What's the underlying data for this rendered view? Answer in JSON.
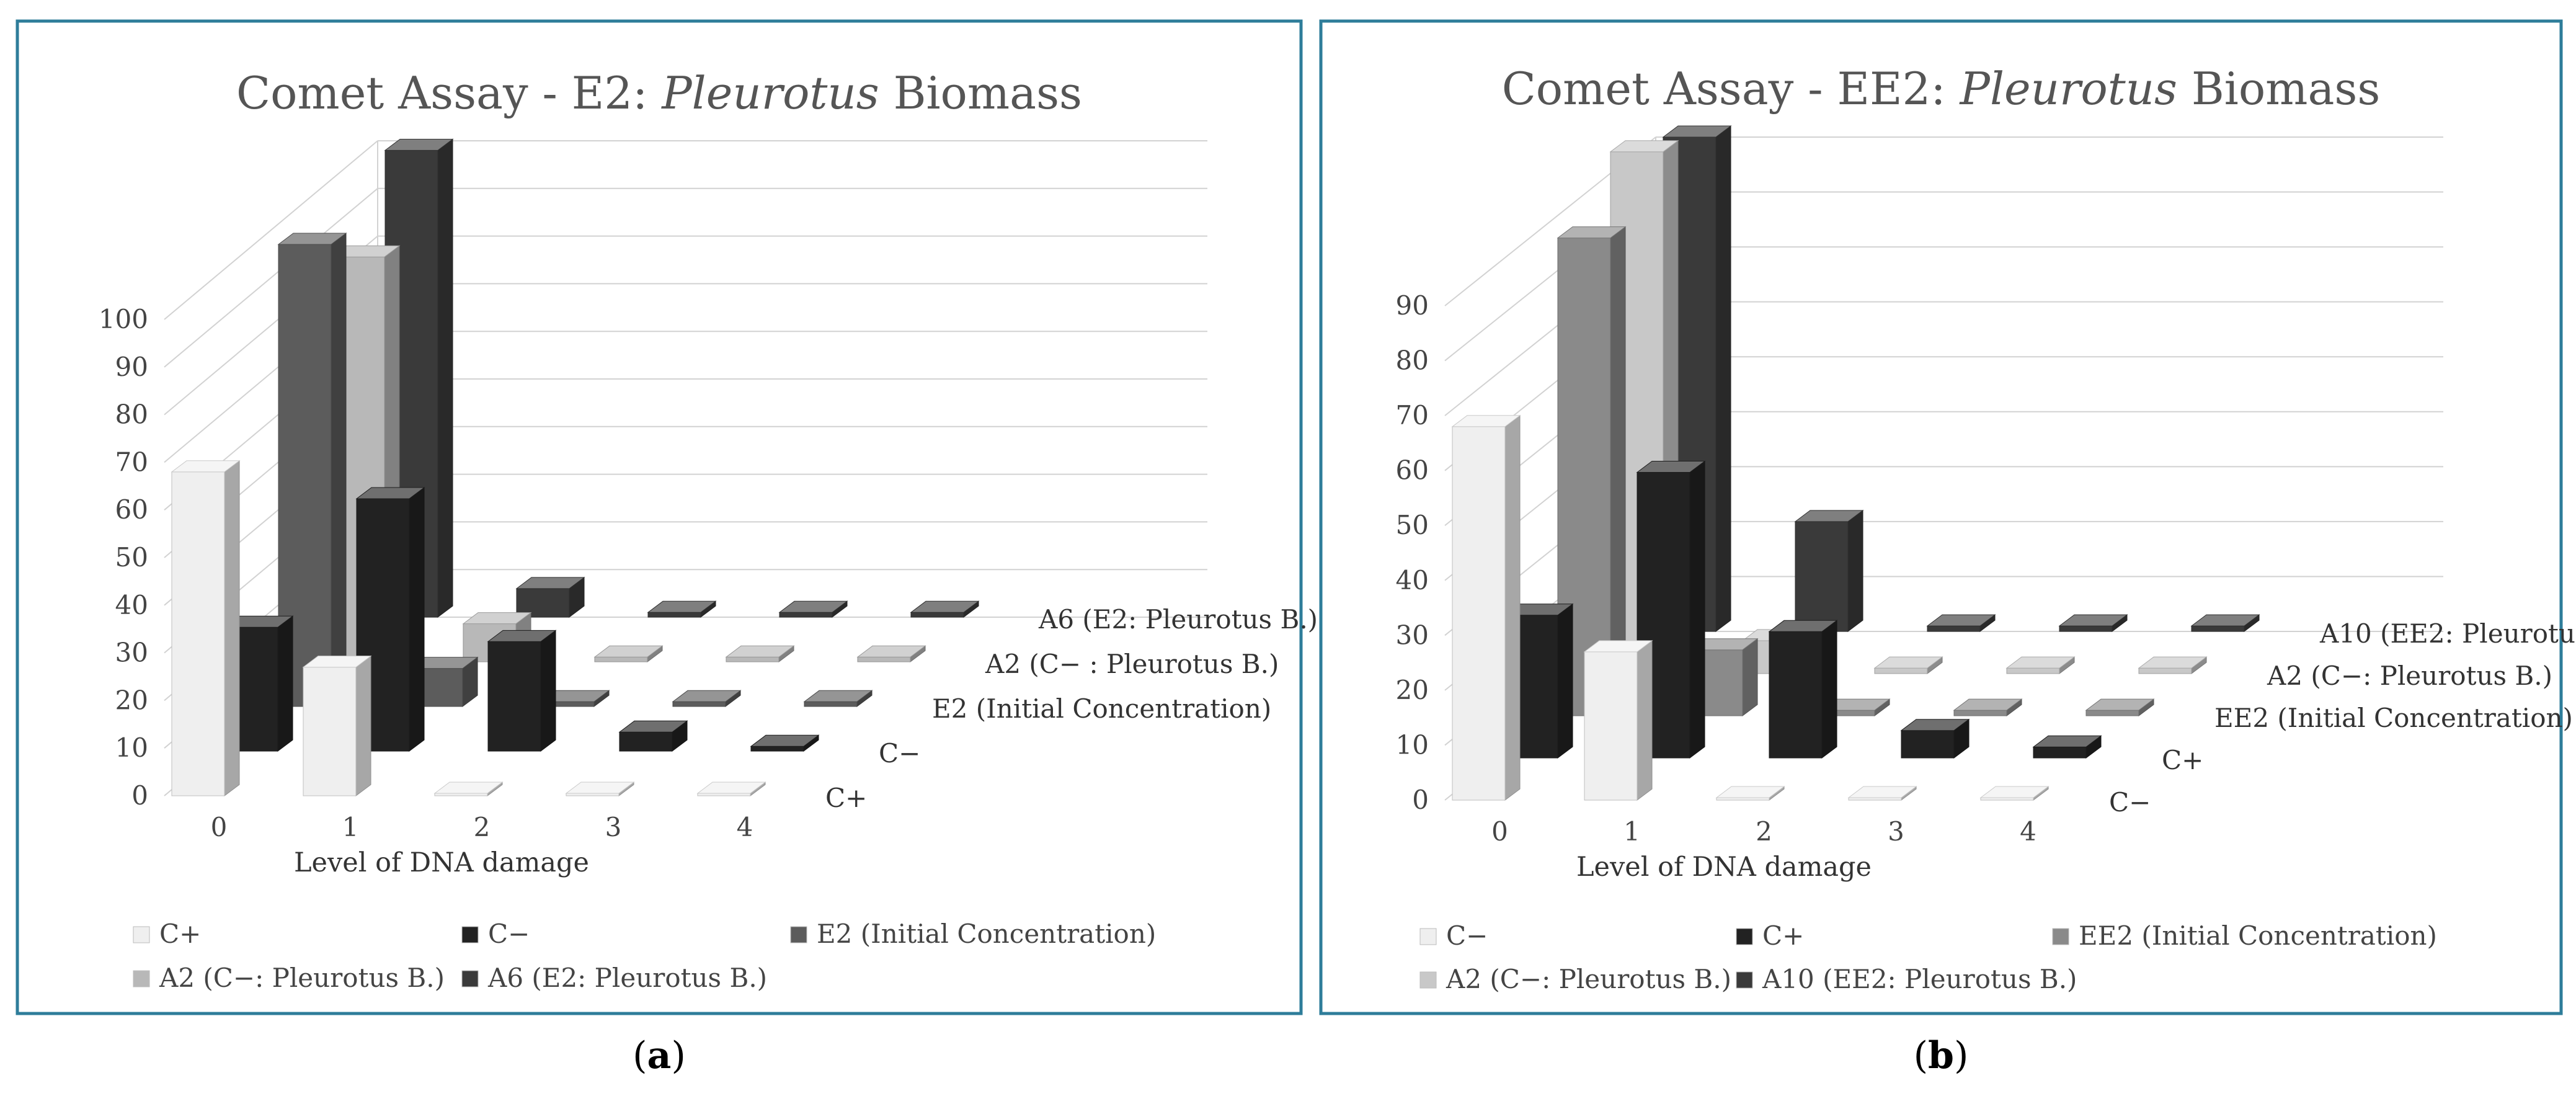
{
  "chart_data": [
    {
      "type": "bar",
      "title_parts": [
        "Comet Assay - E2: ",
        "Pleurotus",
        " Biomass"
      ],
      "title": "Comet Assay - E2: Pleurotus Biomass",
      "xlabel": "Level of DNA damage",
      "ylabel": "",
      "ylim": [
        0,
        100
      ],
      "y_ticks": [
        "0",
        "10",
        "20",
        "30",
        "40",
        "50",
        "60",
        "70",
        "80",
        "90",
        "100"
      ],
      "categories": [
        "0",
        "1",
        "2",
        "3",
        "4"
      ],
      "series": [
        {
          "name": "C+",
          "values": [
            68,
            27,
            0,
            0,
            0
          ],
          "color": "#efefef"
        },
        {
          "name": "C−",
          "values": [
            26,
            53,
            23,
            4,
            1
          ],
          "color": "#222222"
        },
        {
          "name": "E2 (Initial Concentration)",
          "values": [
            97,
            8,
            1,
            1,
            1
          ],
          "color": "#5c5c5c"
        },
        {
          "name": "A2 (C− : Pleurotus B.)",
          "values": [
            85,
            8,
            1,
            1,
            1
          ],
          "color": "#b8b8b8"
        },
        {
          "name": "A6 (E2: Pleurotus B.)",
          "values": [
            98,
            6,
            1,
            1,
            1
          ],
          "color": "#3a3a3a"
        }
      ],
      "depth_labels": [
        "C+",
        "C−",
        "E2 (Initial Concentration)",
        "A2 (C− : Pleurotus B.)",
        "A6 (E2: Pleurotus B.)"
      ],
      "legend": {
        "row1": [
          "C+",
          "C−",
          "E2 (Initial Concentration)"
        ],
        "row2": [
          "A2 (C−: Pleurotus B.)",
          "A6 (E2: Pleurotus B.)"
        ]
      },
      "caption": "a",
      "grid": true,
      "legend_position": "bottom"
    },
    {
      "type": "bar",
      "title_parts": [
        "Comet Assay - EE2: ",
        "Pleurotus",
        " Biomass"
      ],
      "title": "Comet Assay - EE2: Pleurotus Biomass",
      "xlabel": "Level of DNA damage",
      "ylabel": "",
      "ylim": [
        0,
        90
      ],
      "y_ticks": [
        "0",
        "10",
        "20",
        "30",
        "40",
        "50",
        "60",
        "70",
        "80",
        "90"
      ],
      "categories": [
        "0",
        "1",
        "2",
        "3",
        "4"
      ],
      "series": [
        {
          "name": "C−",
          "values": [
            68,
            27,
            0,
            0,
            0
          ],
          "color": "#efefef"
        },
        {
          "name": "C+",
          "values": [
            26,
            52,
            23,
            5,
            2
          ],
          "color": "#222222"
        },
        {
          "name": "EE2 (Initial Concentration)",
          "values": [
            87,
            12,
            1,
            1,
            1
          ],
          "color": "#8a8a8a"
        },
        {
          "name": "A2 (C−: Pleurotus B.)",
          "values": [
            95,
            6,
            1,
            1,
            1
          ],
          "color": "#c8c8c8"
        },
        {
          "name": "A10 (EE2: Pleurotus B.)",
          "values": [
            90,
            20,
            1,
            1,
            1
          ],
          "color": "#3a3a3a"
        }
      ],
      "depth_labels": [
        "C−",
        "C+",
        "EE2 (Initial Concentration)",
        "A2 (C−: Pleurotus B.)",
        "A10 (EE2: Pleurotus B.)"
      ],
      "legend": {
        "row1": [
          "C−",
          "C+",
          "EE2 (Initial Concentration)"
        ],
        "row2": [
          "A2 (C−: Pleurotus B.)",
          "A10 (EE2: Pleurotus B.)"
        ]
      },
      "caption": "b",
      "grid": true,
      "legend_position": "bottom"
    }
  ]
}
